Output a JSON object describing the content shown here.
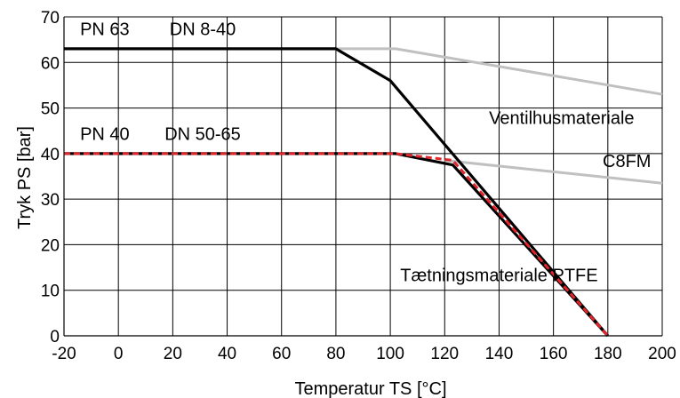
{
  "chart_data": {
    "type": "line",
    "xlabel": "Temperatur TS [°C]",
    "ylabel": "Tryk PS [bar]",
    "xlim": [
      -20,
      200
    ],
    "ylim": [
      0,
      70
    ],
    "x_ticks": [
      -20,
      0,
      20,
      40,
      60,
      80,
      100,
      120,
      140,
      160,
      180,
      200
    ],
    "y_ticks": [
      0,
      10,
      20,
      30,
      40,
      50,
      60,
      70
    ],
    "grid": true,
    "series": [
      {
        "color": "#c0c0c0",
        "style": "solid",
        "points": [
          [
            80,
            63
          ],
          [
            102,
            63
          ],
          [
            200,
            53
          ]
        ]
      },
      {
        "color": "#c0c0c0",
        "style": "solid",
        "points": [
          [
            120,
            38.5
          ],
          [
            200,
            33.5
          ]
        ]
      },
      {
        "color": "#000000",
        "style": "solid",
        "points": [
          [
            -20,
            63
          ],
          [
            80,
            63
          ],
          [
            100,
            56
          ],
          [
            180,
            0
          ]
        ]
      },
      {
        "color": "#000000",
        "style": "solid",
        "points": [
          [
            -20,
            40
          ],
          [
            102,
            40
          ],
          [
            123,
            37.5
          ],
          [
            180,
            0
          ]
        ]
      },
      {
        "color": "#e0262b",
        "style": "dashed",
        "points": [
          [
            -20,
            40
          ],
          [
            102,
            40
          ],
          [
            123,
            38.5
          ],
          [
            180,
            0
          ]
        ]
      }
    ],
    "annotations": [
      {
        "text": "PN 63",
        "x": -5,
        "y": 66
      },
      {
        "text": "DN 8-40",
        "x": 31,
        "y": 66
      },
      {
        "text": "PN 40",
        "x": -5,
        "y": 43
      },
      {
        "text": "DN 50-65",
        "x": 31,
        "y": 43
      },
      {
        "text": "Ventilhusmateriale",
        "x": 163,
        "y": 46.5
      },
      {
        "text": "C8FM",
        "x": 187,
        "y": 37
      },
      {
        "text": "Tætningsmateriale PTFE",
        "x": 140,
        "y": 12
      }
    ]
  }
}
